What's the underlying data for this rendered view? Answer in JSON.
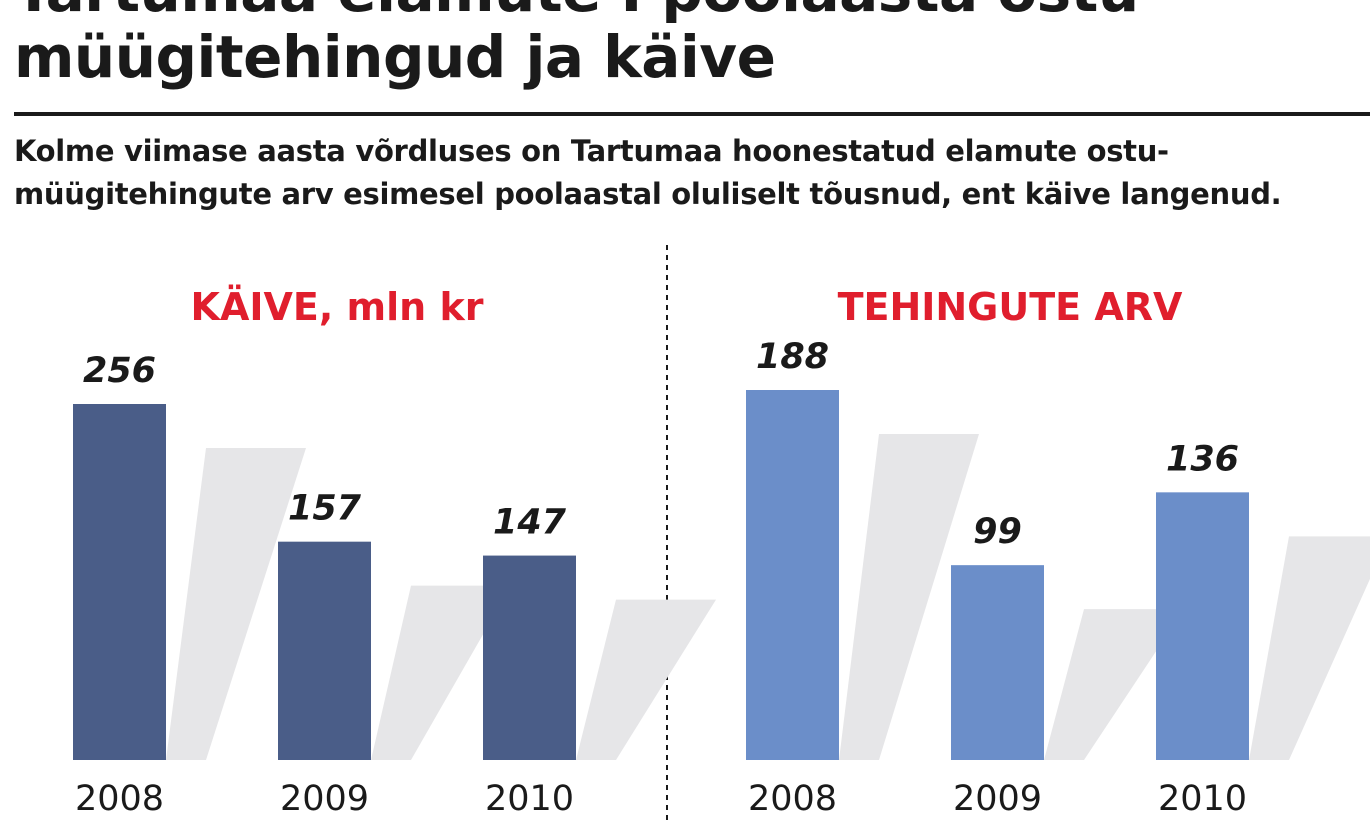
{
  "title": "Tartumaa elamute I poolaasta ostu-müügitehingud ja käive",
  "subtitle": "Kolme viimase aasta võrdluses on Tartumaa hoonestatud elamute ostu-müügitehingute arv esimesel poolaastal oluliselt tõusnud, ent käive langenud.",
  "colors": {
    "title_accent": "#e01e2d",
    "bar_kaive": "#4a5d88",
    "bar_tehingud": "#6b8ec9",
    "shadow": "#e6e6e8"
  },
  "chart_data": [
    {
      "type": "bar",
      "title": "KÄIVE, mln kr",
      "categories": [
        "2008",
        "2009",
        "2010"
      ],
      "values": [
        256,
        157,
        147
      ],
      "xlabel": "",
      "ylabel": "",
      "grid": false
    },
    {
      "type": "bar",
      "title": "TEHINGUTE ARV",
      "categories": [
        "2008",
        "2009",
        "2010"
      ],
      "values": [
        188,
        99,
        136
      ],
      "xlabel": "",
      "ylabel": "",
      "grid": false
    }
  ]
}
